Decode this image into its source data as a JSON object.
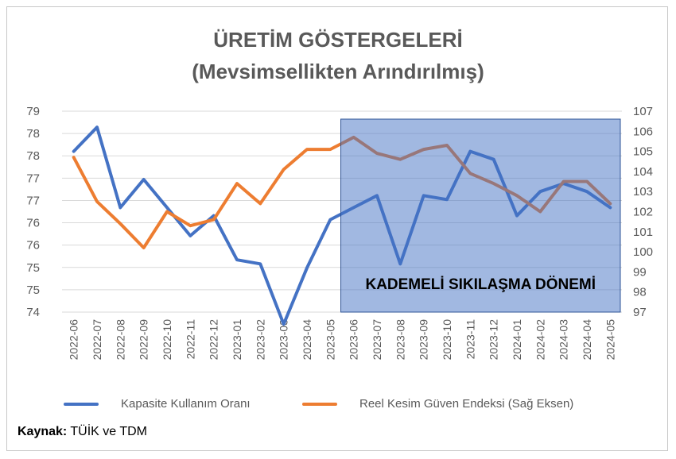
{
  "chart_data": {
    "type": "line",
    "title_line1": "ÜRETİM GÖSTERGELERİ",
    "title_line2": "(Mevsimsellikten Arındırılmış)",
    "x": [
      "2022-06",
      "2022-07",
      "2022-08",
      "2022-09",
      "2022-10",
      "2022-11",
      "2022-12",
      "2023-01",
      "2023-02",
      "2023-03",
      "2023-04",
      "2023-05",
      "2023-06",
      "2023-07",
      "2023-08",
      "2023-09",
      "2023-10",
      "2023-11",
      "2023-12",
      "2024-01",
      "2024-02",
      "2024-03",
      "2024-04",
      "2024-05"
    ],
    "left_axis": {
      "ticks": [
        "74",
        "75",
        "75",
        "76",
        "76",
        "77",
        "77",
        "78",
        "78",
        "79"
      ],
      "min": 74,
      "max": 79
    },
    "right_axis": {
      "ticks": [
        "97",
        "98",
        "99",
        "100",
        "101",
        "102",
        "103",
        "104",
        "105",
        "106",
        "107"
      ],
      "min": 97,
      "max": 107
    },
    "series": [
      {
        "name": "Kapasite Kullanım Oranı",
        "axis": "left",
        "color": "#4472c4",
        "values": [
          78.0,
          78.6,
          76.6,
          77.3,
          76.6,
          75.9,
          76.4,
          75.3,
          75.2,
          73.7,
          75.1,
          76.3,
          76.6,
          76.9,
          75.2,
          76.9,
          76.8,
          78.0,
          77.8,
          76.4,
          77.0,
          77.2,
          77.0,
          76.6
        ]
      },
      {
        "name": "Reel Kesim Güven Endeksi (Sağ Eksen)",
        "axis": "right",
        "color": "#ed7d31",
        "values": [
          104.7,
          102.5,
          101.4,
          100.2,
          102.0,
          101.3,
          101.6,
          103.4,
          102.4,
          104.1,
          105.1,
          105.1,
          105.7,
          104.9,
          104.6,
          105.1,
          105.3,
          103.9,
          103.4,
          102.8,
          102.0,
          103.5,
          103.5,
          102.4
        ]
      }
    ],
    "band": {
      "label": "KADEMELİ SIKILAŞMA DÖNEMİ",
      "from": "2023-06",
      "to": "2024-05",
      "color": "#4472c4"
    },
    "grid": "horizontal",
    "legend_position": "bottom"
  },
  "source": {
    "label": "Kaynak:",
    "text": " TÜİK ve TDM"
  }
}
